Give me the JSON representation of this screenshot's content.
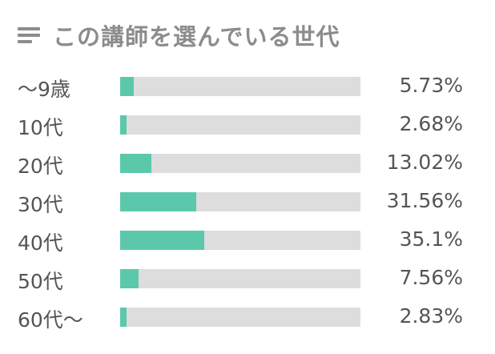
{
  "header": {
    "icon": "list-icon",
    "title": "この講師を選んでいる世代"
  },
  "colors": {
    "bar_fill": "#5bc8ab",
    "bar_track": "#dddddd",
    "title": "#8c8c8c",
    "text": "#555555"
  },
  "chart_data": {
    "type": "bar",
    "orientation": "horizontal",
    "title": "この講師を選んでいる世代",
    "categories": [
      "〜9歳",
      "10代",
      "20代",
      "30代",
      "40代",
      "50代",
      "60代〜"
    ],
    "values": [
      5.73,
      2.68,
      13.02,
      31.56,
      35.1,
      7.56,
      2.83
    ],
    "value_labels": [
      "5.73%",
      "2.68%",
      "13.02%",
      "31.56%",
      "35.1%",
      "7.56%",
      "2.83%"
    ],
    "unit": "%",
    "xlim": [
      0,
      100
    ],
    "grid": false,
    "legend": "none"
  }
}
